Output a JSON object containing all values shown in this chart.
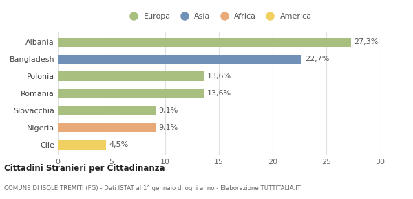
{
  "categories": [
    "Albania",
    "Bangladesh",
    "Polonia",
    "Romania",
    "Slovacchia",
    "Nigeria",
    "Cile"
  ],
  "values": [
    27.3,
    22.7,
    13.6,
    13.6,
    9.1,
    9.1,
    4.5
  ],
  "labels": [
    "27,3%",
    "22,7%",
    "13,6%",
    "13,6%",
    "9,1%",
    "9,1%",
    "4,5%"
  ],
  "colors": [
    "#a8bf80",
    "#7090b8",
    "#a8bf80",
    "#a8bf80",
    "#a8bf80",
    "#e8aa78",
    "#f0d060"
  ],
  "legend_labels": [
    "Europa",
    "Asia",
    "Africa",
    "America"
  ],
  "legend_colors": [
    "#a8bf80",
    "#7090b8",
    "#e8aa78",
    "#f0d060"
  ],
  "xlim": [
    0,
    30
  ],
  "xticks": [
    0,
    5,
    10,
    15,
    20,
    25,
    30
  ],
  "title_bold": "Cittadini Stranieri per Cittadinanza",
  "subtitle": "COMUNE DI ISOLE TREMITI (FG) - Dati ISTAT al 1° gennaio di ogni anno - Elaborazione TUTTITALIA.IT",
  "bg_color": "#ffffff",
  "grid_color": "#e0e0e0",
  "label_fontsize": 8,
  "tick_fontsize": 8,
  "bar_height": 0.55
}
